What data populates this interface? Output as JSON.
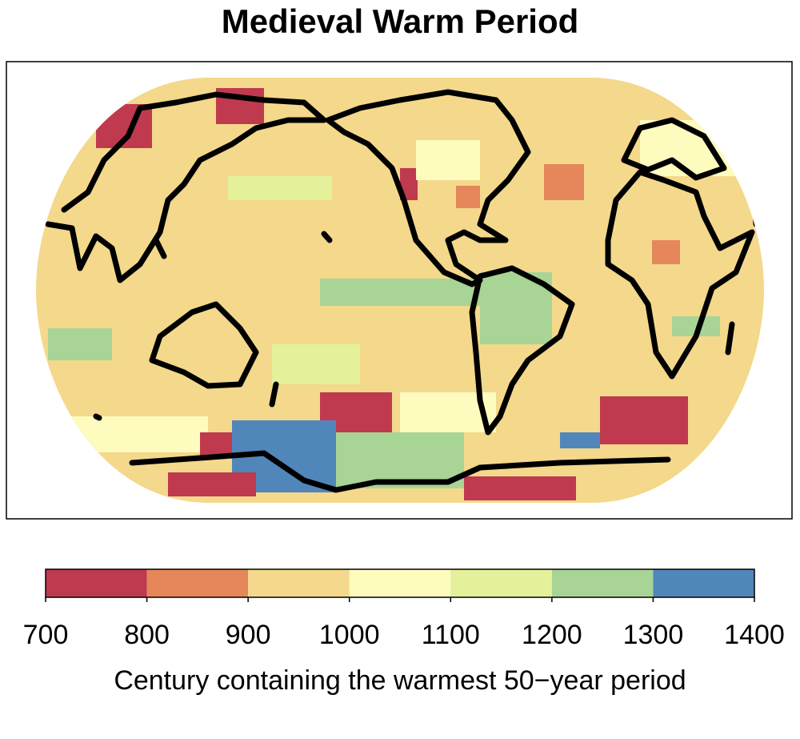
{
  "title": "Medieval Warm Period",
  "colorbar": {
    "label": "Century containing the warmest 50−year period",
    "ticks": [
      700,
      800,
      900,
      1000,
      1100,
      1200,
      1300,
      1400
    ],
    "colors": [
      "#bf3a4e",
      "#e5875a",
      "#f4d88b",
      "#fdfbbe",
      "#e4f09a",
      "#a8d495",
      "#5186bb"
    ]
  }
}
